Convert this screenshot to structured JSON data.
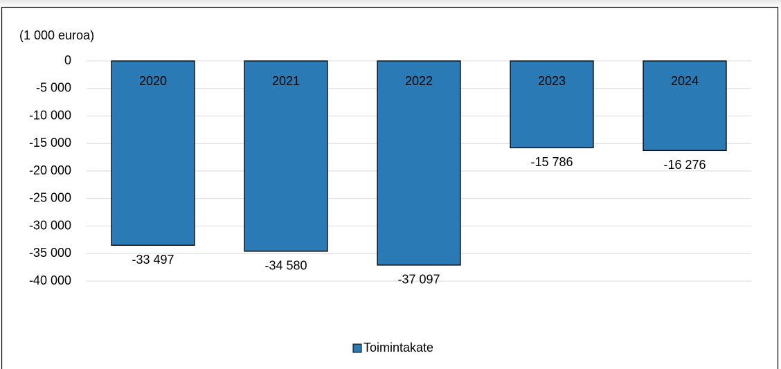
{
  "chart_data": {
    "type": "bar",
    "y_axis_label": "(1 000 euroa)",
    "categories": [
      "2020",
      "2021",
      "2022",
      "2023",
      "2024"
    ],
    "series": [
      {
        "name": "Toimintakate",
        "color": "#2a7ab5",
        "values": [
          -33497,
          -34580,
          -37097,
          -15786,
          -16276
        ],
        "value_labels": [
          "-33 497",
          "-34 580",
          "-37 097",
          "-15 786",
          "-16 276"
        ]
      }
    ],
    "ylim": [
      -40000,
      0
    ],
    "yticks": [
      0,
      {
        "value": -5000,
        "label": "-5 000"
      },
      {
        "value": -10000,
        "label": "-10 000"
      },
      {
        "value": -15000,
        "label": "-15 000"
      },
      {
        "value": -20000,
        "label": "-20 000"
      },
      {
        "value": -25000,
        "label": "-25 000"
      },
      {
        "value": -30000,
        "label": "-30 000"
      },
      {
        "value": -35000,
        "label": "-35 000"
      },
      {
        "value": -40000,
        "label": "-40 000"
      }
    ],
    "grid": true,
    "legend": "bottom"
  }
}
